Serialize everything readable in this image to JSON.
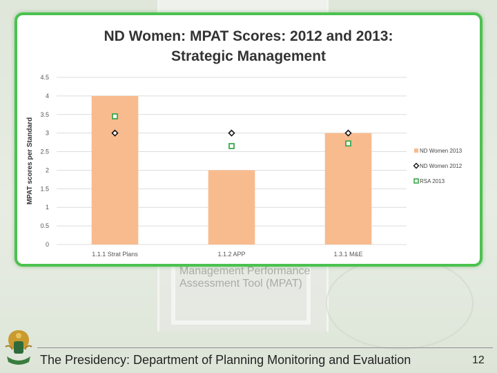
{
  "slide": {
    "background_text": "Management Performance Assessment Tool (MPAT)",
    "footer_text": "The Presidency: Department of Planning Monitoring and Evaluation",
    "page_number": "12"
  },
  "colors": {
    "bar": "#f8bb8e",
    "diamond": "#111111",
    "square": "#3aa84a",
    "card_border": "#4bc24f"
  },
  "chart_data": {
    "type": "bar",
    "title_line1": "ND Women: MPAT Scores: 2012 and 2013:",
    "title_line2": "Strategic Management",
    "xlabel": "",
    "ylabel": "MPAT scores per Standard",
    "ylim": [
      0,
      4.5
    ],
    "yticks": [
      "0",
      "0.5",
      "1",
      "1.5",
      "2",
      "2.5",
      "3",
      "3.5",
      "4",
      "4.5"
    ],
    "categories": [
      "1.1.1 Strat Plans",
      "1.1.2 APP",
      "1.3.1 M&E"
    ],
    "grid": true,
    "legend_position": "right",
    "series": [
      {
        "name": "ND Women 2013",
        "kind": "bar",
        "marker": "bar",
        "values": [
          4,
          2,
          3
        ]
      },
      {
        "name": "ND Women 2012",
        "kind": "marker",
        "marker": "diamond",
        "values": [
          3,
          3,
          3
        ]
      },
      {
        "name": "RSA 2013",
        "kind": "marker",
        "marker": "square",
        "values": [
          3.45,
          2.65,
          2.72
        ]
      }
    ]
  }
}
